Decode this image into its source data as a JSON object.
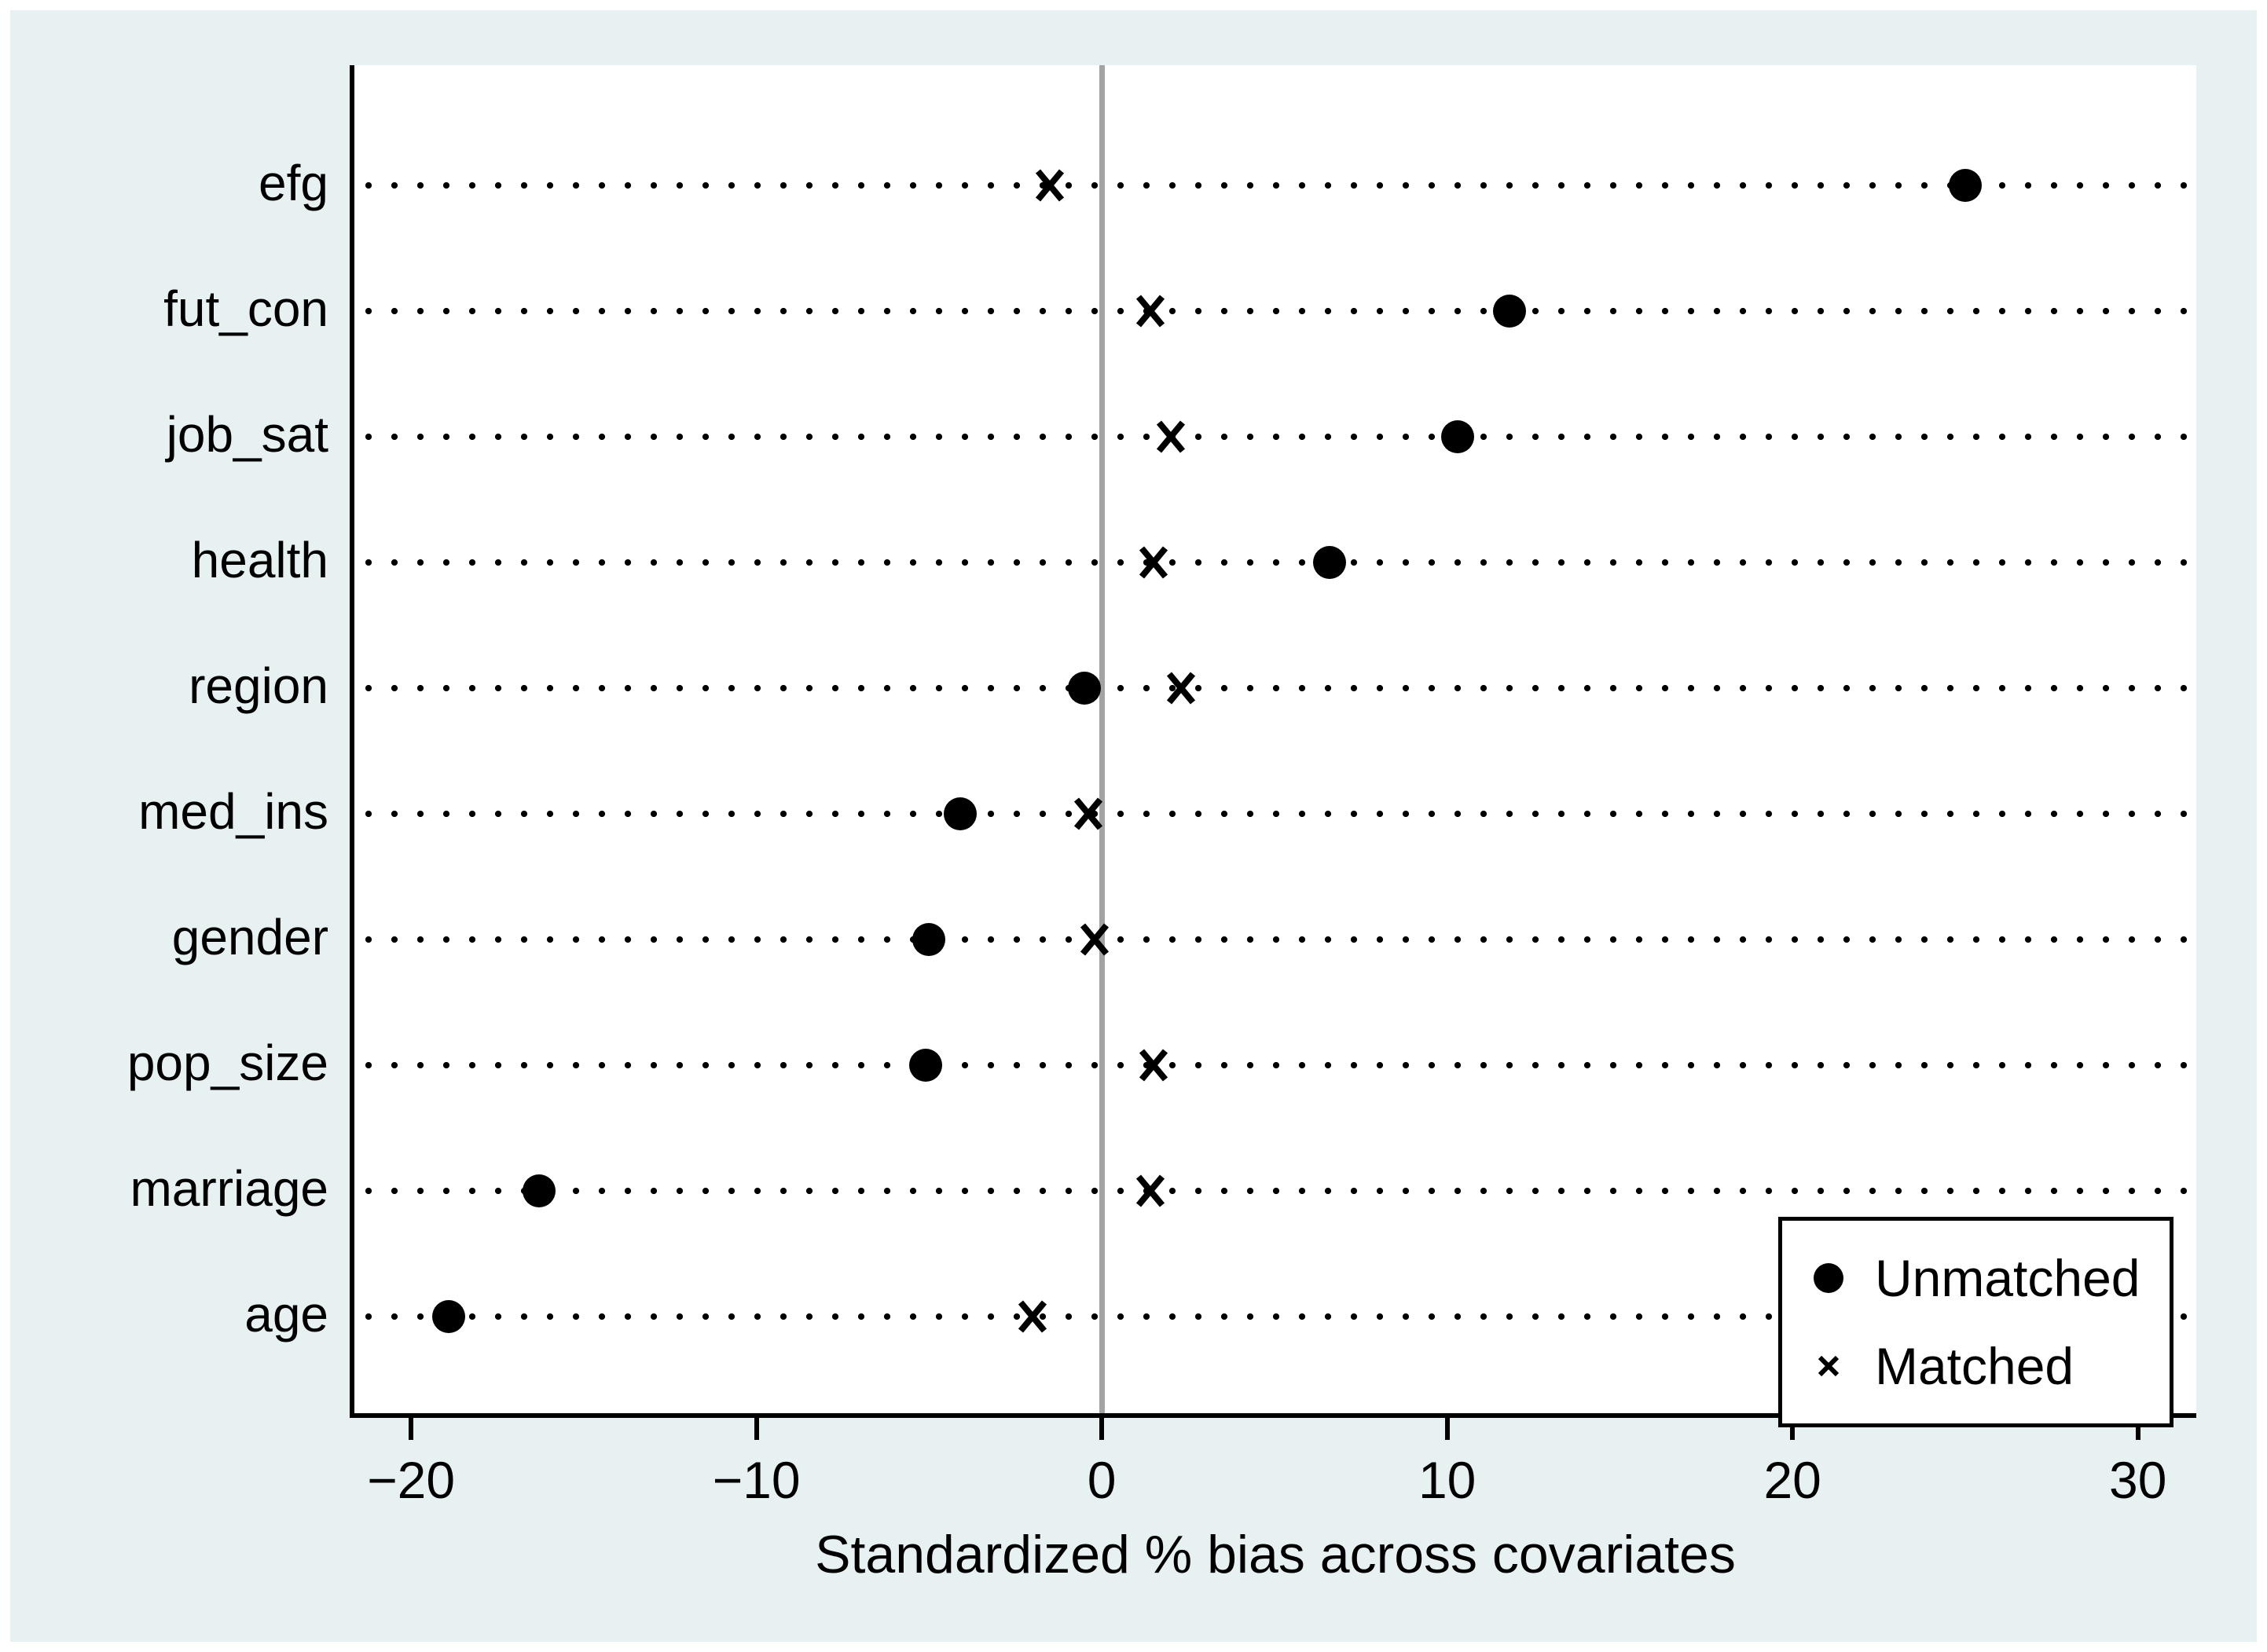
{
  "colors": {
    "background": "#e8f1f2",
    "plot_background": "#ffffff",
    "marker": "#000000",
    "reference_line": "#a3a3a3",
    "text": "#000000"
  },
  "chart_data": {
    "type": "scatter",
    "subtype": "dot-plot-covariate-balance",
    "title": "",
    "xlabel": "Standardized % bias across covariates",
    "ylabel": "",
    "categories": [
      "efg",
      "fut_con",
      "job_sat",
      "health",
      "region",
      "med_ins",
      "gender",
      "pop_size",
      "marriage",
      "age"
    ],
    "series": [
      {
        "name": "Unmatched",
        "marker": "circle",
        "values": [
          25.0,
          11.8,
          10.3,
          6.6,
          -0.5,
          -4.1,
          -5.0,
          -5.1,
          -16.3,
          -18.9
        ]
      },
      {
        "name": "Matched",
        "marker": "x",
        "values": [
          -1.5,
          1.4,
          2.0,
          1.5,
          2.3,
          -0.4,
          -0.2,
          1.5,
          1.4,
          -2.0
        ]
      }
    ],
    "x_ticks": [
      -20,
      -10,
      0,
      10,
      20,
      30
    ],
    "x_tick_labels": [
      "−20",
      "−10",
      "0",
      "10",
      "20",
      "30"
    ],
    "xlim": [
      -21.64,
      31.69
    ],
    "reference_line_x": 0,
    "grid": "dotted horizontal row guides",
    "legend_position": "inside bottom-right"
  }
}
